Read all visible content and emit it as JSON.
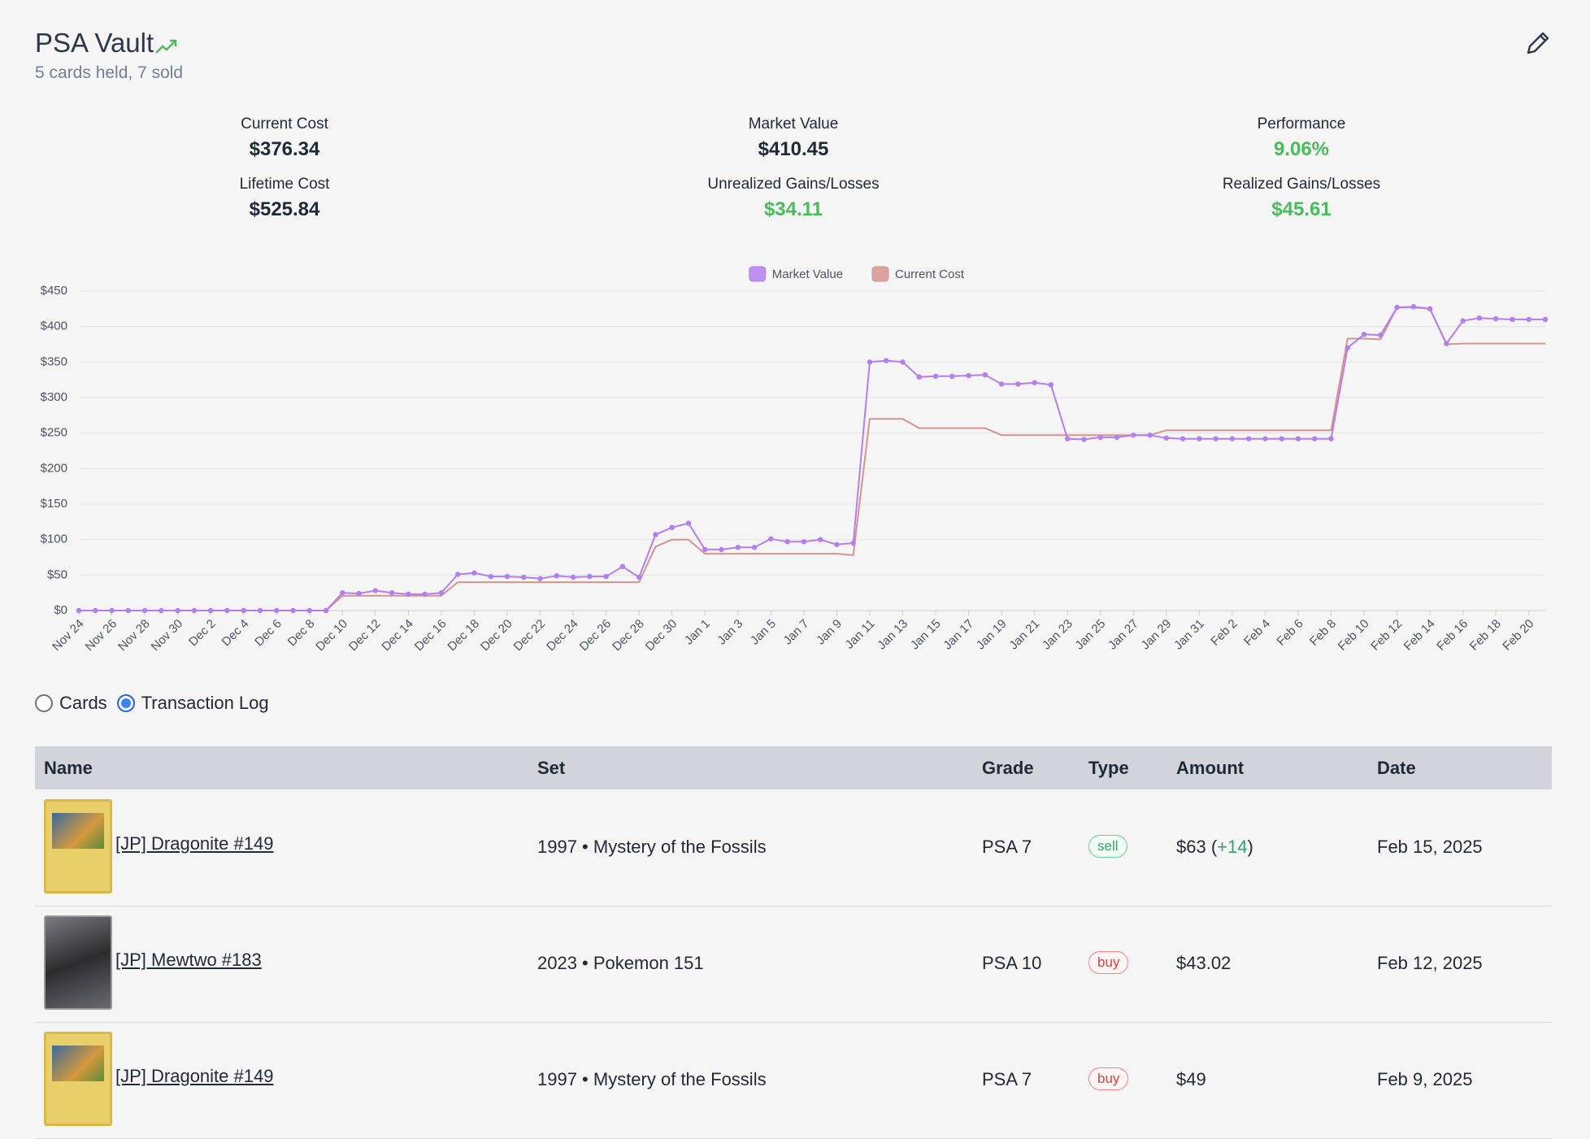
{
  "header": {
    "title": "PSA Vault",
    "subtitle": "5 cards held, 7 sold"
  },
  "stats": [
    {
      "label": "Current Cost",
      "value": "$376.34",
      "color": "#1f2937"
    },
    {
      "label": "Market Value",
      "value": "$410.45",
      "color": "#1f2937"
    },
    {
      "label": "Performance",
      "value": "9.06%",
      "color": "#4cbb5e"
    },
    {
      "label": "Lifetime Cost",
      "value": "$525.84",
      "color": "#1f2937"
    },
    {
      "label": "Unrealized Gains/Losses",
      "value": "$34.11",
      "color": "#4cbb5e"
    },
    {
      "label": "Realized Gains/Losses",
      "value": "$45.61",
      "color": "#4cbb5e"
    }
  ],
  "chart_data": {
    "type": "line",
    "categories": [
      "Nov 24",
      null,
      "Nov 26",
      null,
      "Nov 28",
      null,
      "Nov 30",
      null,
      "Dec 2",
      null,
      "Dec 4",
      null,
      "Dec 6",
      null,
      "Dec 8",
      null,
      "Dec 10",
      null,
      "Dec 12",
      null,
      "Dec 14",
      null,
      "Dec 16",
      null,
      "Dec 18",
      null,
      "Dec 20",
      null,
      "Dec 22",
      null,
      "Dec 24",
      null,
      "Dec 26",
      null,
      "Dec 28",
      null,
      "Dec 30",
      null,
      "Jan 1",
      null,
      "Jan 3",
      null,
      "Jan 5",
      null,
      "Jan 7",
      null,
      "Jan 9",
      null,
      "Jan 11",
      null,
      "Jan 13",
      null,
      "Jan 15",
      null,
      "Jan 17",
      null,
      "Jan 19",
      null,
      "Jan 21",
      null,
      "Jan 23",
      null,
      "Jan 25",
      null,
      "Jan 27",
      null,
      "Jan 29",
      null,
      "Jan 31",
      null,
      "Feb 2",
      null,
      "Feb 4",
      null,
      "Feb 6",
      null,
      "Feb 8",
      null,
      "Feb 10",
      null,
      "Feb 12",
      null,
      "Feb 14",
      null,
      "Feb 16",
      null,
      "Feb 18",
      null,
      "Feb 20",
      null
    ],
    "series": [
      {
        "name": "Market Value",
        "color": "#b57ef0",
        "markers": true,
        "values": [
          0,
          0,
          0,
          0,
          0,
          0,
          0,
          0,
          0,
          0,
          0,
          0,
          0,
          0,
          0,
          0,
          25,
          24,
          28,
          25,
          23,
          23,
          25,
          51,
          53,
          48,
          48,
          47,
          45,
          49,
          47,
          48,
          48,
          62,
          47,
          107,
          117,
          123,
          86,
          86,
          89,
          89,
          101,
          97,
          97,
          100,
          93,
          95,
          350,
          352,
          350,
          329,
          330,
          330,
          331,
          332,
          319,
          319,
          321,
          318,
          242,
          241,
          244,
          244,
          247,
          247,
          243,
          242,
          242,
          242,
          242,
          242,
          242,
          242,
          242,
          242,
          242,
          370,
          389,
          388,
          427,
          428,
          425,
          376,
          408,
          412,
          411,
          410,
          410,
          410
        ]
      },
      {
        "name": "Current Cost",
        "color": "#d4948f",
        "markers": false,
        "values": [
          0,
          0,
          0,
          0,
          0,
          0,
          0,
          0,
          0,
          0,
          0,
          0,
          0,
          0,
          0,
          0,
          21,
          21,
          21,
          21,
          21,
          21,
          21,
          40,
          40,
          40,
          40,
          40,
          40,
          40,
          40,
          40,
          40,
          40,
          40,
          90,
          100,
          100,
          80,
          80,
          80,
          80,
          80,
          80,
          80,
          80,
          80,
          78,
          270,
          270,
          270,
          257,
          257,
          257,
          257,
          257,
          247,
          247,
          247,
          247,
          247,
          247,
          247,
          247,
          247,
          247,
          254,
          254,
          254,
          254,
          254,
          254,
          254,
          254,
          254,
          254,
          254,
          383,
          383,
          382,
          427,
          427,
          425,
          375,
          376,
          376,
          376,
          376,
          376,
          376
        ]
      }
    ],
    "ylim": [
      0,
      450
    ],
    "yticks": [
      {
        "value": 0,
        "label": "$0"
      },
      {
        "value": 50,
        "label": "$50"
      },
      {
        "value": 100,
        "label": "$100"
      },
      {
        "value": 150,
        "label": "$150"
      },
      {
        "value": 200,
        "label": "$200"
      },
      {
        "value": 250,
        "label": "$250"
      },
      {
        "value": 300,
        "label": "$300"
      },
      {
        "value": 350,
        "label": "$350"
      },
      {
        "value": 400,
        "label": "$400"
      },
      {
        "value": 450,
        "label": "$450"
      }
    ],
    "grid": true,
    "legend": "top"
  },
  "view_options": [
    "Cards",
    "Transaction Log"
  ],
  "selected_view": 1,
  "table": {
    "columns": [
      "Name",
      "Set",
      "Grade",
      "Type",
      "Amount",
      "Date"
    ],
    "rows": [
      {
        "name": "[JP] Dragonite #149",
        "set": "1997 • Mystery of the Fossils",
        "grade": "PSA 7",
        "type": "sell",
        "amount": "$63",
        "gain": "+14",
        "date": "Feb 15, 2025"
      },
      {
        "name": "[JP] Mewtwo #183",
        "set": "2023 • Pokemon 151",
        "grade": "PSA 10",
        "type": "buy",
        "amount": "$43.02",
        "date": "Feb 12, 2025"
      },
      {
        "name": "[JP] Dragonite #149",
        "set": "1997 • Mystery of the Fossils",
        "grade": "PSA 7",
        "type": "buy",
        "amount": "$49",
        "date": "Feb 9, 2025"
      }
    ]
  }
}
